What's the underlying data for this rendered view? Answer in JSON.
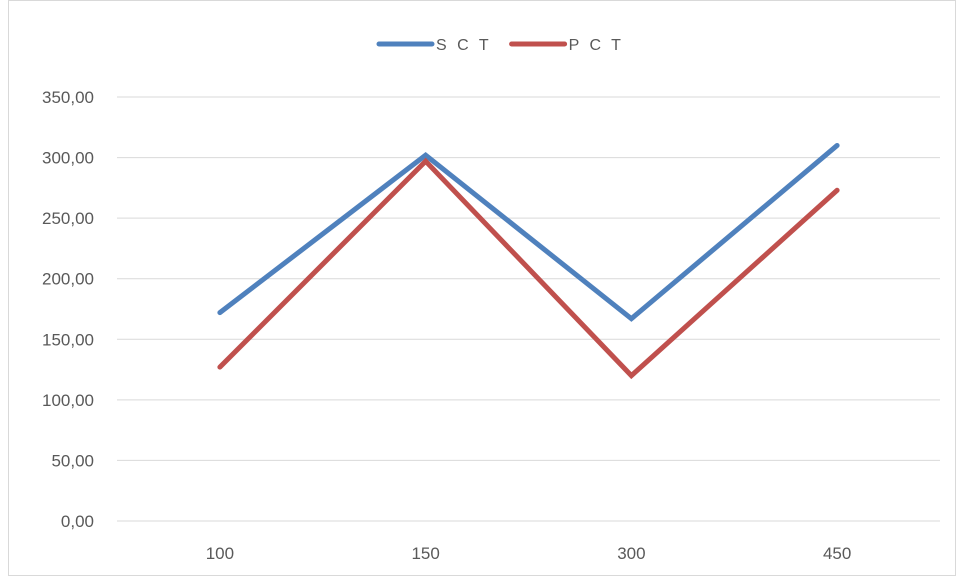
{
  "chart_data": {
    "type": "line",
    "categories": [
      "100",
      "150",
      "300",
      "450"
    ],
    "series": [
      {
        "name": "S C T",
        "color": "#4f81bd",
        "values": [
          172,
          302,
          167,
          310
        ]
      },
      {
        "name": "P C T",
        "color": "#c0504d",
        "values": [
          127,
          297,
          120,
          273
        ]
      }
    ],
    "ylim": [
      0,
      350
    ],
    "yticks": [
      0,
      50,
      100,
      150,
      200,
      250,
      300,
      350
    ],
    "ytick_labels": [
      "0,00",
      "50,00",
      "100,00",
      "150,00",
      "200,00",
      "250,00",
      "300,00",
      "350,00"
    ],
    "grid": true,
    "legend_position": "top-center"
  }
}
